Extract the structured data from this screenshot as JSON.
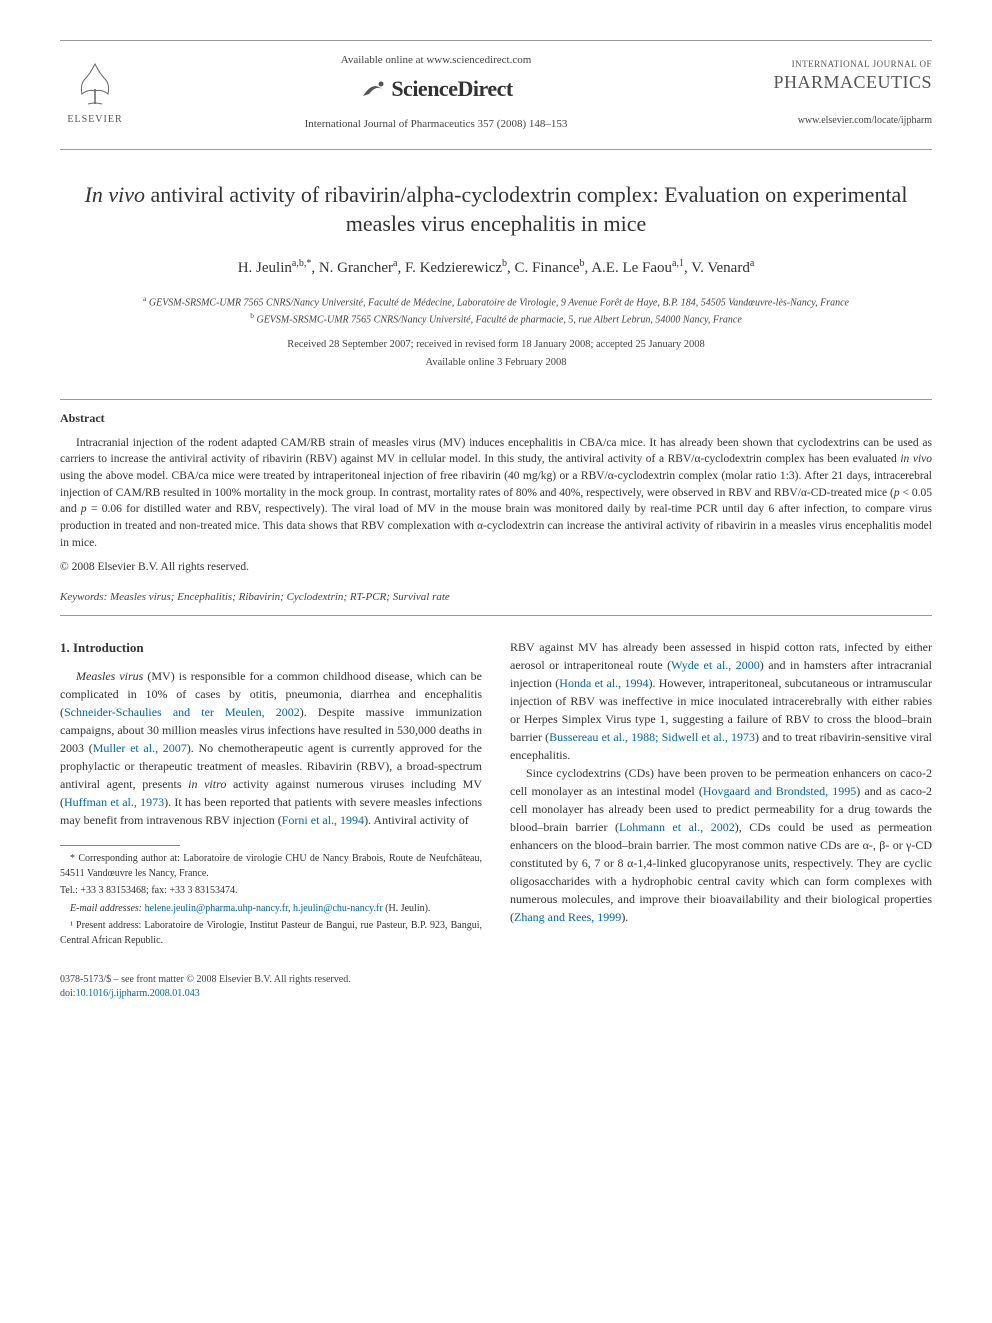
{
  "header": {
    "elsevier_label": "ELSEVIER",
    "available_online": "Available online at www.sciencedirect.com",
    "sciencedirect": "ScienceDirect",
    "journal_ref": "International Journal of Pharmaceutics 357 (2008) 148–153",
    "ij_small": "INTERNATIONAL JOURNAL OF",
    "pharm_big": "PHARMACEUTICS",
    "locate_url": "www.elsevier.com/locate/ijpharm"
  },
  "title_prefix_italic": "In vivo",
  "title_rest": " antiviral activity of ribavirin/alpha-cyclodextrin complex: Evaluation on experimental measles virus encephalitis in mice",
  "authors_html": "H. Jeulin<sup>a,b,*</sup>, N. Grancher<sup>a</sup>, F. Kedzierewicz<sup>b</sup>, C. Finance<sup>b</sup>, A.E. Le Faou<sup>a,1</sup>, V. Venard<sup>a</sup>",
  "affiliations": {
    "a": "GEVSM-SRSMC-UMR 7565 CNRS/Nancy Université, Faculté de Médecine, Laboratoire de Virologie, 9 Avenue Forêt de Haye, B.P. 184, 54505 Vandœuvre-lès-Nancy, France",
    "b": "GEVSM-SRSMC-UMR 7565 CNRS/Nancy Université, Faculté de pharmacie, 5, rue Albert Lebrun, 54000 Nancy, France"
  },
  "received": "Received 28 September 2007; received in revised form 18 January 2008; accepted 25 January 2008",
  "available": "Available online 3 February 2008",
  "abstract_heading": "Abstract",
  "abstract_body": "Intracranial injection of the rodent adapted CAM/RB strain of measles virus (MV) induces encephalitis in CBA/ca mice. It has already been shown that cyclodextrins can be used as carriers to increase the antiviral activity of ribavirin (RBV) against MV in cellular model. In this study, the antiviral activity of a RBV/α-cyclodextrin complex has been evaluated in vivo using the above model. CBA/ca mice were treated by intraperitoneal injection of free ribavirin (40 mg/kg) or a RBV/α-cyclodextrin complex (molar ratio 1:3). After 21 days, intracerebral injection of CAM/RB resulted in 100% mortality in the mock group. In contrast, mortality rates of 80% and 40%, respectively, were observed in RBV and RBV/α-CD-treated mice (p < 0.05 and p = 0.06 for distilled water and RBV, respectively). The viral load of MV in the mouse brain was monitored daily by real-time PCR until day 6 after infection, to compare virus production in treated and non-treated mice. This data shows that RBV complexation with α-cyclodextrin can increase the antiviral activity of ribavirin in a measles virus encephalitis model in mice.",
  "copyright": "© 2008 Elsevier B.V. All rights reserved.",
  "keywords_label": "Keywords:",
  "keywords_text": " Measles virus; Encephalitis; Ribavirin; Cyclodextrin; RT-PCR; Survival rate",
  "section1_heading": "1. Introduction",
  "col_left_p1_lead_italic": "Measles virus",
  "col_left_p1": " (MV) is responsible for a common childhood disease, which can be complicated in 10% of cases by otitis, pneumonia, diarrhea and encephalitis (",
  "link_schneider": "Schneider-Schaulies and ter Meulen, 2002",
  "col_left_p1b": "). Despite massive immunization campaigns, about 30 million measles virus infections have resulted in 530,000 deaths in 2003 (",
  "link_muller": "Muller et al., 2007",
  "col_left_p1c": "). No chemotherapeutic agent is currently approved for the prophylactic or therapeutic treatment of measles. Ribavirin (RBV), a broad-spectrum antiviral agent, presents ",
  "col_left_p1c_italic": "in vitro",
  "col_left_p1d": " activity against numerous viruses including MV (",
  "link_huffman": "Huffman et al., 1973",
  "col_left_p1e": "). It has been reported that patients with severe measles infections may benefit from intravenous RBV injection (",
  "link_forni": "Forni et al., 1994",
  "col_left_p1f": "). Antiviral activity of",
  "col_right_p1a": "RBV against MV has already been assessed in hispid cotton rats, infected by either aerosol or intraperitoneal route (",
  "link_wyde": "Wyde et al., 2000",
  "col_right_p1b": ") and in hamsters after intracranial injection (",
  "link_honda": "Honda et al., 1994",
  "col_right_p1c": "). However, intraperitoneal, subcutaneous or intramuscular injection of RBV was ineffective in mice inoculated intracerebrally with either rabies or Herpes Simplex Virus type 1, suggesting a failure of RBV to cross the blood–brain barrier (",
  "link_bussereau": "Bussereau et al., 1988; Sidwell et al., 1973",
  "col_right_p1d": ") and to treat ribavirin-sensitive viral encephalitis.",
  "col_right_p2a": "Since cyclodextrins (CDs) have been proven to be permeation enhancers on caco-2 cell monolayer as an intestinal model (",
  "link_hovgaard": "Hovgaard and Brondsted, 1995",
  "col_right_p2b": ") and as caco-2 cell monolayer has already been used to predict permeability for a drug towards the blood–brain barrier (",
  "link_lohmann": "Lohmann et al., 2002",
  "col_right_p2c": "), CDs could be used as permeation enhancers on the blood–brain barrier. The most common native CDs are α-, β- or γ-CD constituted by 6, 7 or 8 α-1,4-linked glucopyranose units, respectively. They are cyclic oligosaccharides with a hydrophobic central cavity which can form complexes with numerous molecules, and improve their bioavailability and their biological properties (",
  "link_zhang": "Zhang and Rees, 1999",
  "col_right_p2d": ").",
  "footnotes": {
    "corresponding": "* Corresponding author at: Laboratoire de virologie CHU de Nancy Brabois, Route de Neufchâteau, 54511 Vandœuvre les Nancy, France.",
    "tel": "Tel.: +33 3 83153468; fax: +33 3 83153474.",
    "email_label": "E-mail addresses:",
    "email1": "helene.jeulin@pharma.uhp-nancy.fr",
    "email_sep": ", ",
    "email2": "h.jeulin@chu-nancy.fr",
    "email_attr": " (H. Jeulin).",
    "present": "¹ Present address: Laboratoire de Virologie, Institut Pasteur de Bangui, rue Pasteur, B.P. 923, Bangui, Central African Republic."
  },
  "footer": {
    "left1": "0378-5173/$ – see front matter © 2008 Elsevier B.V. All rights reserved.",
    "doi_label": "doi:",
    "doi": "10.1016/j.ijpharm.2008.01.043"
  },
  "colors": {
    "link": "#0066aa",
    "text": "#333333",
    "muted": "#444444",
    "rule": "#999999",
    "background": "#ffffff"
  },
  "fonts": {
    "body_family": "Times New Roman",
    "title_size_pt": 17,
    "body_size_pt": 9,
    "abstract_size_pt": 8.5,
    "footnote_size_pt": 7.5
  }
}
